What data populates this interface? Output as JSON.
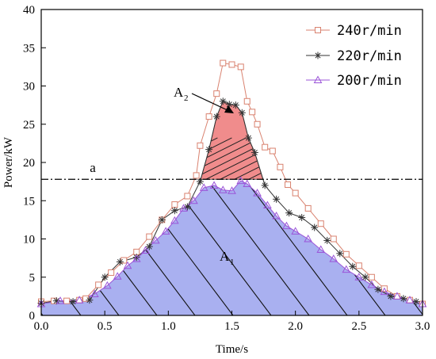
{
  "chart_data": {
    "type": "line",
    "xlabel": "Time/s",
    "ylabel": "Power/kW",
    "xlim": [
      0.0,
      3.0
    ],
    "ylim": [
      0,
      40
    ],
    "x_ticks": [
      "0.0",
      "0.5",
      "1.0",
      "1.5",
      "2.0",
      "2.5",
      "3.0"
    ],
    "y_ticks": [
      "0",
      "5",
      "10",
      "15",
      "20",
      "25",
      "30",
      "35",
      "40"
    ],
    "x_tick_values": [
      0,
      0.5,
      1.0,
      1.5,
      2.0,
      2.5,
      3.0
    ],
    "y_tick_values": [
      0,
      5,
      10,
      15,
      20,
      25,
      30,
      35,
      40
    ],
    "grid": false,
    "legend_position": "top-right",
    "threshold": {
      "label": "a",
      "y": 17.8
    },
    "regions": [
      {
        "label": "A",
        "subscript": "2",
        "color": "#f08c8c",
        "description_series": "220r/min"
      },
      {
        "label": "A",
        "subscript": "1",
        "color": "#a9b0f0",
        "description_series": "200r/min"
      }
    ],
    "series": [
      {
        "name": "240r/min",
        "color": "#d9826f",
        "marker": "square",
        "x": [
          0.0,
          0.1,
          0.2,
          0.3,
          0.35,
          0.45,
          0.55,
          0.65,
          0.75,
          0.85,
          0.95,
          1.05,
          1.15,
          1.22,
          1.25,
          1.32,
          1.38,
          1.43,
          1.5,
          1.57,
          1.62,
          1.66,
          1.7,
          1.76,
          1.82,
          1.88,
          1.94,
          2.0,
          2.1,
          2.2,
          2.3,
          2.4,
          2.5,
          2.6,
          2.7,
          2.8,
          2.9,
          3.0
        ],
        "y": [
          1.8,
          1.9,
          1.9,
          2.0,
          2.2,
          4.0,
          5.6,
          7.2,
          8.3,
          10.3,
          12.5,
          14.5,
          15.6,
          18.3,
          22.2,
          26.0,
          29.0,
          33.0,
          32.8,
          32.5,
          28.0,
          26.6,
          25.0,
          22.0,
          21.5,
          19.4,
          17.1,
          16.0,
          14.0,
          12.0,
          10.0,
          8.0,
          6.5,
          5.0,
          3.5,
          2.5,
          2.0,
          1.5
        ]
      },
      {
        "name": "220r/min",
        "color": "#333333",
        "marker": "asterisk",
        "x": [
          0.0,
          0.12,
          0.25,
          0.38,
          0.5,
          0.62,
          0.75,
          0.85,
          0.95,
          1.05,
          1.15,
          1.25,
          1.32,
          1.38,
          1.43,
          1.48,
          1.53,
          1.58,
          1.63,
          1.68,
          1.76,
          1.85,
          1.95,
          2.05,
          2.15,
          2.25,
          2.35,
          2.45,
          2.55,
          2.65,
          2.75,
          2.85,
          2.95
        ],
        "y": [
          1.6,
          1.9,
          1.8,
          2.0,
          5.0,
          7.0,
          7.6,
          9.0,
          12.5,
          13.7,
          14.2,
          17.5,
          21.7,
          26.0,
          28.0,
          27.6,
          27.5,
          26.5,
          23.2,
          21.3,
          17.0,
          15.2,
          13.4,
          12.8,
          11.5,
          9.8,
          8.1,
          6.4,
          5.0,
          3.4,
          2.5,
          2.2,
          1.8
        ]
      },
      {
        "name": "200r/min",
        "color": "#9b55d8",
        "marker": "triangle",
        "x": [
          0.0,
          0.15,
          0.3,
          0.42,
          0.52,
          0.6,
          0.68,
          0.75,
          0.82,
          0.9,
          0.98,
          1.05,
          1.12,
          1.2,
          1.28,
          1.36,
          1.43,
          1.5,
          1.57,
          1.62,
          1.7,
          1.78,
          1.85,
          1.93,
          2.0,
          2.1,
          2.2,
          2.3,
          2.4,
          2.5,
          2.6,
          2.7,
          2.8,
          2.9,
          3.0
        ],
        "y": [
          1.5,
          1.9,
          2.0,
          2.8,
          3.9,
          5.1,
          6.5,
          7.4,
          8.5,
          9.8,
          11.0,
          12.4,
          14.0,
          15.0,
          16.7,
          17.0,
          16.4,
          16.3,
          17.6,
          17.2,
          16.0,
          14.4,
          13.0,
          11.7,
          11.0,
          10.0,
          8.6,
          7.4,
          6.0,
          5.0,
          4.0,
          3.1,
          2.5,
          2.0,
          1.5
        ]
      }
    ]
  }
}
